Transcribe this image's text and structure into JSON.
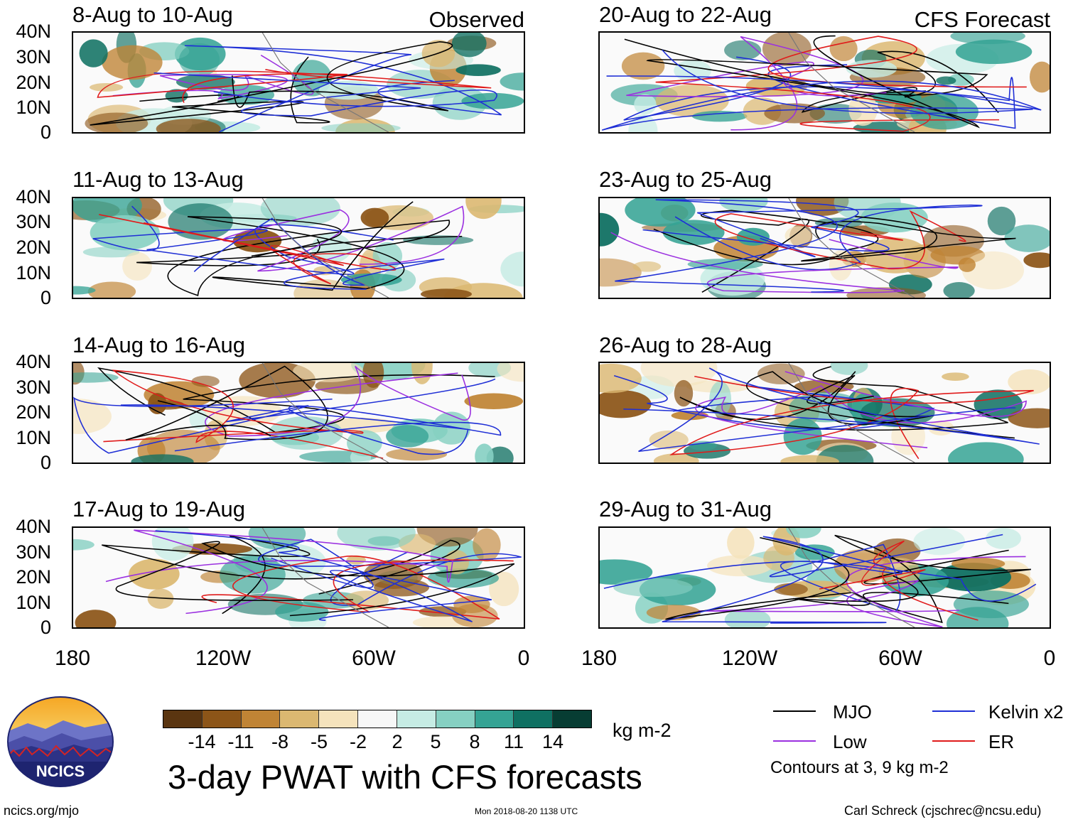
{
  "observed_label": "Observed",
  "forecast_label": "CFS Forecast",
  "panels_left": [
    {
      "title": "8-Aug to 10-Aug"
    },
    {
      "title": "11-Aug to 13-Aug"
    },
    {
      "title": "14-Aug to 16-Aug"
    },
    {
      "title": "17-Aug to 19-Aug"
    }
  ],
  "panels_right": [
    {
      "title": "20-Aug to 22-Aug"
    },
    {
      "title": "23-Aug to 25-Aug"
    },
    {
      "title": "26-Aug to 28-Aug"
    },
    {
      "title": "29-Aug to 31-Aug"
    }
  ],
  "lat_ticks": [
    "40N",
    "30N",
    "20N",
    "10N",
    "0"
  ],
  "lon_ticks": [
    "180",
    "120W",
    "60W",
    "0"
  ],
  "colorbar": {
    "colors": [
      "#5a3510",
      "#8c5518",
      "#c08435",
      "#dbb871",
      "#f5e3bc",
      "#f7f7f7",
      "#c6ece4",
      "#86d0c2",
      "#35a394",
      "#0f7062",
      "#073d33"
    ],
    "labels": [
      "-14",
      "-11",
      "-8",
      "-5",
      "-2",
      "2",
      "5",
      "8",
      "11",
      "14"
    ],
    "unit": "kg m-2"
  },
  "main_title": "3-day PWAT with CFS forecasts",
  "legend": {
    "items": [
      {
        "label": "MJO",
        "color": "#000000"
      },
      {
        "label": "Kelvin x2",
        "color": "#1f2fd6"
      },
      {
        "label": "Low",
        "color": "#9b30e0"
      },
      {
        "label": "ER",
        "color": "#e01b1b"
      }
    ],
    "note": "Contours at 3, 9 kg m-2"
  },
  "logo_text": "NCICS",
  "footer": {
    "left": "ncics.org/mjo",
    "center": "Mon 2018-08-20 1138 UTC",
    "right": "Carl Schreck (cjschrec@ncsu.edu)"
  }
}
